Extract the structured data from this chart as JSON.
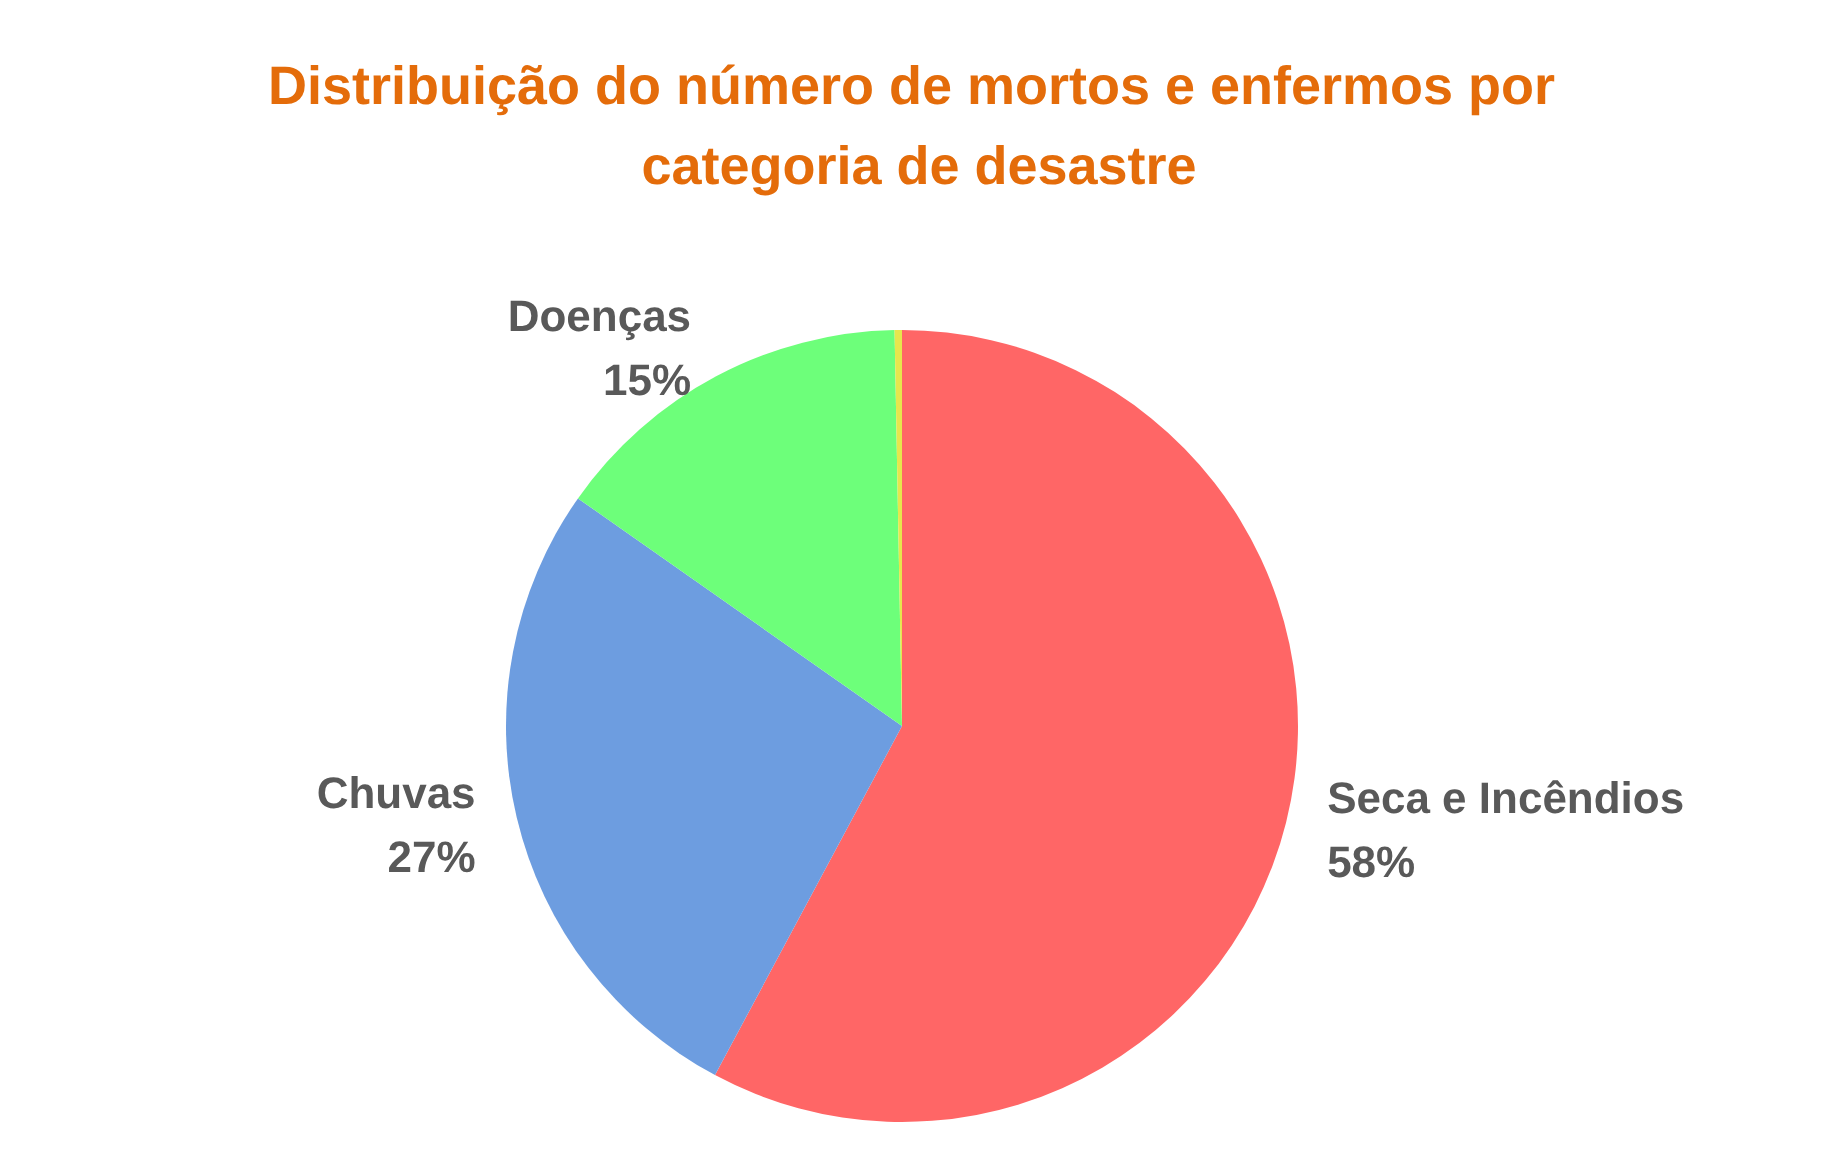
{
  "chart_data": {
    "type": "pie",
    "title": "Distribuição do número de mortos e enfermos por categoria de desastre",
    "categories": [
      "Seca e Incêndios",
      "Chuvas",
      "Doenças",
      null
    ],
    "values": [
      58,
      27,
      15,
      0.3
    ],
    "colors": [
      "#ff6666",
      "#6d9de0",
      "#6dff7a",
      "#e6e64d"
    ],
    "value_labels": [
      "58%",
      "27%",
      "15%",
      null
    ]
  }
}
